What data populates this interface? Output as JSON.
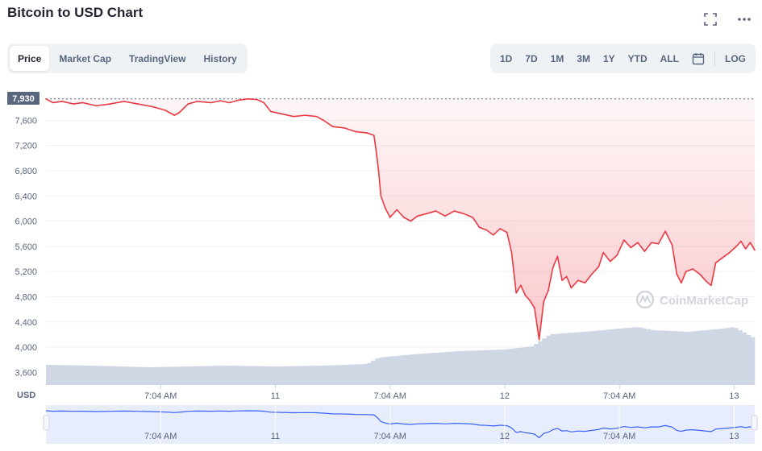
{
  "header": {
    "title": "Bitcoin to USD Chart"
  },
  "icons": {
    "fullscreen": "fullscreen-icon",
    "more": "more-icon",
    "calendar": "calendar-icon"
  },
  "tabs": [
    {
      "label": "Price",
      "active": true
    },
    {
      "label": "Market Cap",
      "active": false
    },
    {
      "label": "TradingView",
      "active": false
    },
    {
      "label": "History",
      "active": false
    }
  ],
  "ranges": [
    "1D",
    "7D",
    "1M",
    "3M",
    "1Y",
    "YTD",
    "ALL"
  ],
  "log_label": "LOG",
  "watermark": "CoinMarketCap",
  "colors": {
    "price_down": "#ea3943",
    "price_up": "#16c784",
    "volume": "#cfd6e4",
    "navigator_line": "#3861fb",
    "navigator_fill": "#e8edfd"
  },
  "chart_data": {
    "type": "line",
    "currency_label": "USD",
    "current_price_label": "7,930",
    "y_ticks": [
      3600,
      4000,
      4400,
      4800,
      5200,
      5600,
      6000,
      6400,
      6800,
      7200,
      7600
    ],
    "y_tick_labels": [
      "3,600",
      "4,000",
      "4,400",
      "4,800",
      "5,200",
      "5,600",
      "6,000",
      "6,400",
      "6,800",
      "7,200",
      "7,600"
    ],
    "ylim": [
      3400,
      7950
    ],
    "x_ticks": [
      {
        "t": 0.5,
        "label": "7:04 AM"
      },
      {
        "t": 1.0,
        "label": "11"
      },
      {
        "t": 1.5,
        "label": "7:04 AM"
      },
      {
        "t": 2.0,
        "label": "12"
      },
      {
        "t": 2.5,
        "label": "7:04 AM"
      },
      {
        "t": 3.0,
        "label": "13"
      }
    ],
    "x_range_days": [
      0.0,
      3.09
    ],
    "price": [
      [
        0.0,
        7940
      ],
      [
        0.03,
        7880
      ],
      [
        0.07,
        7900
      ],
      [
        0.12,
        7860
      ],
      [
        0.16,
        7880
      ],
      [
        0.22,
        7830
      ],
      [
        0.28,
        7860
      ],
      [
        0.34,
        7900
      ],
      [
        0.4,
        7860
      ],
      [
        0.46,
        7820
      ],
      [
        0.52,
        7760
      ],
      [
        0.56,
        7680
      ],
      [
        0.58,
        7720
      ],
      [
        0.62,
        7860
      ],
      [
        0.66,
        7900
      ],
      [
        0.72,
        7880
      ],
      [
        0.76,
        7910
      ],
      [
        0.8,
        7880
      ],
      [
        0.84,
        7920
      ],
      [
        0.88,
        7940
      ],
      [
        0.92,
        7930
      ],
      [
        0.95,
        7880
      ],
      [
        0.98,
        7740
      ],
      [
        1.03,
        7700
      ],
      [
        1.08,
        7660
      ],
      [
        1.13,
        7680
      ],
      [
        1.18,
        7660
      ],
      [
        1.21,
        7600
      ],
      [
        1.25,
        7500
      ],
      [
        1.3,
        7480
      ],
      [
        1.35,
        7420
      ],
      [
        1.4,
        7400
      ],
      [
        1.43,
        7360
      ],
      [
        1.44,
        7100
      ],
      [
        1.45,
        6800
      ],
      [
        1.46,
        6400
      ],
      [
        1.48,
        6200
      ],
      [
        1.5,
        6060
      ],
      [
        1.53,
        6180
      ],
      [
        1.56,
        6060
      ],
      [
        1.59,
        6000
      ],
      [
        1.62,
        6080
      ],
      [
        1.66,
        6120
      ],
      [
        1.7,
        6160
      ],
      [
        1.74,
        6080
      ],
      [
        1.78,
        6160
      ],
      [
        1.82,
        6120
      ],
      [
        1.86,
        6060
      ],
      [
        1.89,
        5900
      ],
      [
        1.92,
        5860
      ],
      [
        1.95,
        5780
      ],
      [
        1.98,
        5880
      ],
      [
        2.01,
        5820
      ],
      [
        2.03,
        5500
      ],
      [
        2.05,
        4860
      ],
      [
        2.07,
        4980
      ],
      [
        2.09,
        4820
      ],
      [
        2.11,
        4740
      ],
      [
        2.13,
        4620
      ],
      [
        2.15,
        4120
      ],
      [
        2.17,
        4720
      ],
      [
        2.19,
        4900
      ],
      [
        2.21,
        5260
      ],
      [
        2.23,
        5440
      ],
      [
        2.25,
        5060
      ],
      [
        2.27,
        5120
      ],
      [
        2.29,
        4940
      ],
      [
        2.32,
        5060
      ],
      [
        2.35,
        5020
      ],
      [
        2.38,
        5160
      ],
      [
        2.41,
        5280
      ],
      [
        2.43,
        5500
      ],
      [
        2.46,
        5360
      ],
      [
        2.49,
        5460
      ],
      [
        2.52,
        5700
      ],
      [
        2.55,
        5580
      ],
      [
        2.58,
        5660
      ],
      [
        2.61,
        5520
      ],
      [
        2.64,
        5660
      ],
      [
        2.67,
        5640
      ],
      [
        2.7,
        5840
      ],
      [
        2.73,
        5620
      ],
      [
        2.75,
        5160
      ],
      [
        2.77,
        5020
      ],
      [
        2.79,
        5200
      ],
      [
        2.82,
        5240
      ],
      [
        2.85,
        5160
      ],
      [
        2.88,
        5040
      ],
      [
        2.9,
        4980
      ],
      [
        2.92,
        5340
      ],
      [
        2.95,
        5420
      ],
      [
        2.98,
        5500
      ],
      [
        3.01,
        5600
      ],
      [
        3.03,
        5680
      ],
      [
        3.05,
        5560
      ],
      [
        3.07,
        5660
      ],
      [
        3.09,
        5540
      ]
    ],
    "volume_relative": [
      [
        0.0,
        0.25
      ],
      [
        0.2,
        0.24
      ],
      [
        0.45,
        0.22
      ],
      [
        0.62,
        0.23
      ],
      [
        0.8,
        0.24
      ],
      [
        1.0,
        0.23
      ],
      [
        1.2,
        0.24
      ],
      [
        1.4,
        0.26
      ],
      [
        1.45,
        0.34
      ],
      [
        1.6,
        0.38
      ],
      [
        1.8,
        0.42
      ],
      [
        2.0,
        0.44
      ],
      [
        2.12,
        0.48
      ],
      [
        2.2,
        0.63
      ],
      [
        2.35,
        0.66
      ],
      [
        2.5,
        0.7
      ],
      [
        2.58,
        0.72
      ],
      [
        2.65,
        0.68
      ],
      [
        2.8,
        0.66
      ],
      [
        2.95,
        0.7
      ],
      [
        3.0,
        0.72
      ],
      [
        3.09,
        0.58
      ]
    ]
  }
}
